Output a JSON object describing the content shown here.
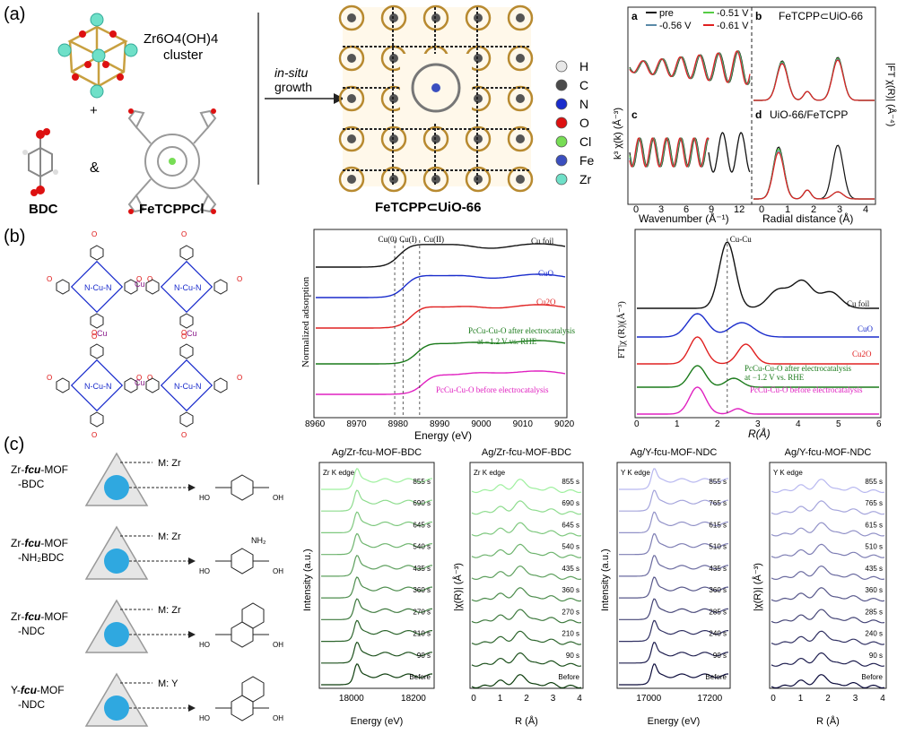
{
  "panel_a": {
    "label": "(a)",
    "cluster_formula": "Zr6O4(OH)4",
    "cluster_word": "cluster",
    "plus": "+",
    "amp": "&",
    "bdc": "BDC",
    "fetcpp": "FeTCPPCl",
    "arrow_top": "in-situ",
    "arrow_bottom": "growth",
    "mof_caption": "FeTCPP⊂UiO-66",
    "legend": [
      {
        "sym": "H",
        "color": "#e8e8e8"
      },
      {
        "sym": "C",
        "color": "#4a4a4a"
      },
      {
        "sym": "N",
        "color": "#1a2ccc"
      },
      {
        "sym": "O",
        "color": "#dd1111"
      },
      {
        "sym": "Cl",
        "color": "#77dd55"
      },
      {
        "sym": "Fe",
        "color": "#3b4fbf"
      },
      {
        "sym": "Zr",
        "color": "#6fe0c8"
      }
    ],
    "exafs": {
      "legend": [
        {
          "name": "pre",
          "color": "#111111"
        },
        {
          "name": "-0.51 V",
          "color": "#55cc44"
        },
        {
          "name": "-0.56 V",
          "color": "#5a8aa8"
        },
        {
          "name": "-0.61 V",
          "color": "#e02020"
        }
      ],
      "sub_a": "a",
      "sub_b": "b",
      "sub_c": "c",
      "sub_d": "d",
      "title_b": "FeTCPP⊂UiO-66",
      "title_d": "UiO-66/FeTCPP",
      "ylabel_left": "k³ χ(k) (Å⁻³)",
      "ylabel_right": "|FT χ(R)| (Å⁻⁴)",
      "xlabel_left": "Wavenumber (Å⁻¹)",
      "xlabel_right": "Radial distance (Å)",
      "xticks_left": [
        "0",
        "3",
        "6",
        "9",
        "12"
      ],
      "xticks_right": [
        "0",
        "1",
        "2",
        "3",
        "4"
      ]
    }
  },
  "panel_b": {
    "label": "(b)",
    "xanes": {
      "curves": [
        "Cu foil",
        "CuO",
        "Cu2O",
        "PcCu-Cu-O after electrocatalysis",
        "at −1.2 V vs. RHE",
        "PcCu-Cu-O before electrocatalysis"
      ],
      "markers": [
        "Cu(0)",
        "Cu(I)",
        "Cu(II)"
      ],
      "ylabel": "Normalized adsorption",
      "xlabel": "Energy (eV)",
      "xticks": [
        "8960",
        "8970",
        "8980",
        "8990",
        "9000",
        "9010",
        "9020"
      ]
    },
    "exafs": {
      "peak": "Cu-Cu",
      "curves": [
        "Cu foil",
        "CuO",
        "Cu2O",
        "PcCu-Cu-O after electrocatalysis",
        "at −1.2 V vs. RHE",
        "PcCu-Cu-O before electrocatalysis"
      ],
      "ylabel": "FT|χ (R)|(Å⁻³)",
      "xlabel": "R(Å)",
      "xticks": [
        "0",
        "1",
        "2",
        "3",
        "4",
        "5",
        "6"
      ]
    }
  },
  "panel_c": {
    "label": "(c)",
    "mofs": [
      {
        "l1": "Zr-fcu-MOF",
        "l2": "-BDC",
        "metal": "M: Zr"
      },
      {
        "l1": "Zr-fcu-MOF",
        "l2": "-NH₂BDC",
        "metal": "M: Zr"
      },
      {
        "l1": "Zr-fcu-MOF",
        "l2": "-NDC",
        "metal": "M: Zr"
      },
      {
        "l1": "Y-fcu-MOF",
        "l2": "-NDC",
        "metal": "M: Y"
      }
    ],
    "plots": [
      {
        "title": "Ag/Zr-fcu-MOF-BDC",
        "edge": "Zr K edge",
        "ylabel": "Intensity (a.u.)",
        "xlabel": "Energy (eV)",
        "xticks": [
          "18000",
          "18200"
        ],
        "times": [
          "855 s",
          "690 s",
          "645 s",
          "540 s",
          "435 s",
          "360 s",
          "270 s",
          "210 s",
          "90 s",
          "Before"
        ]
      },
      {
        "title": "Ag/Zr-fcu-MOF-BDC",
        "edge": "Zr K edge",
        "ylabel": "|χ(R)| (Å⁻³)",
        "xlabel": "R (Å)",
        "xticks": [
          "0",
          "1",
          "2",
          "3",
          "4"
        ],
        "times": [
          "855 s",
          "690 s",
          "645 s",
          "540 s",
          "435 s",
          "360 s",
          "270 s",
          "210 s",
          "90 s",
          "Before"
        ]
      },
      {
        "title": "Ag/Y-fcu-MOF-NDC",
        "edge": "Y K edge",
        "ylabel": "Intensity (a.u.)",
        "xlabel": "Energy (eV)",
        "xticks": [
          "17000",
          "17200"
        ],
        "times": [
          "855 s",
          "765 s",
          "615 s",
          "510 s",
          "435 s",
          "360 s",
          "285 s",
          "240 s",
          "90 s",
          "Before"
        ]
      },
      {
        "title": "Ag/Y-fcu-MOF-NDC",
        "edge": "Y K edge",
        "ylabel": "|χ(R)| (Å⁻³)",
        "xlabel": "R (Å)",
        "xticks": [
          "0",
          "1",
          "2",
          "3",
          "4"
        ],
        "times": [
          "855 s",
          "765 s",
          "615 s",
          "510 s",
          "435 s",
          "360 s",
          "285 s",
          "240 s",
          "90 s",
          "Before"
        ]
      }
    ]
  }
}
